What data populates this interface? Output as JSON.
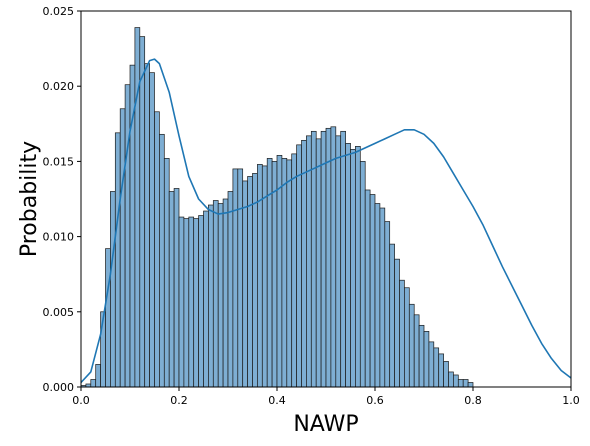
{
  "chart_data": {
    "type": "bar",
    "xlabel": "NAWP",
    "ylabel": "Probability",
    "xlim": [
      0.0,
      1.0
    ],
    "ylim": [
      0.0,
      0.025
    ],
    "xticks": [
      "0.0",
      "0.2",
      "0.4",
      "0.6",
      "0.8",
      "1.0"
    ],
    "yticks": [
      "0.000",
      "0.005",
      "0.010",
      "0.015",
      "0.020",
      "0.025"
    ],
    "grid": false,
    "bar_color": "#7eaed3",
    "bar_edge_color": "#1a1a1a",
    "kde_color": "#1f77b4",
    "bin_width": 0.01,
    "bin_start": 0.0,
    "values": [
      0.0001,
      0.0002,
      0.0005,
      0.0015,
      0.005,
      0.0092,
      0.013,
      0.0169,
      0.0185,
      0.0201,
      0.0214,
      0.0239,
      0.0233,
      0.0215,
      0.0209,
      0.0183,
      0.0168,
      0.0152,
      0.013,
      0.0132,
      0.0113,
      0.0112,
      0.0113,
      0.0112,
      0.0114,
      0.0117,
      0.0121,
      0.0124,
      0.0122,
      0.0125,
      0.013,
      0.0145,
      0.0145,
      0.0137,
      0.014,
      0.0142,
      0.0148,
      0.0147,
      0.0152,
      0.015,
      0.0154,
      0.0152,
      0.0151,
      0.0155,
      0.0161,
      0.0164,
      0.0167,
      0.017,
      0.0165,
      0.017,
      0.0172,
      0.0173,
      0.0167,
      0.017,
      0.0162,
      0.0158,
      0.016,
      0.015,
      0.0131,
      0.0128,
      0.0122,
      0.0119,
      0.011,
      0.0095,
      0.0085,
      0.0071,
      0.0066,
      0.0055,
      0.0048,
      0.0041,
      0.0037,
      0.003,
      0.0026,
      0.0022,
      0.0017,
      0.001,
      0.0008,
      0.0005,
      0.0005,
      0.0003
    ],
    "kde": {
      "x": [
        0.0,
        0.02,
        0.04,
        0.06,
        0.08,
        0.1,
        0.12,
        0.14,
        0.15,
        0.16,
        0.18,
        0.2,
        0.22,
        0.24,
        0.26,
        0.28,
        0.3,
        0.32,
        0.34,
        0.36,
        0.38,
        0.4,
        0.42,
        0.44,
        0.46,
        0.48,
        0.5,
        0.52,
        0.54,
        0.56,
        0.58,
        0.6,
        0.62,
        0.64,
        0.66,
        0.68,
        0.7,
        0.72,
        0.74,
        0.76,
        0.78,
        0.8,
        0.82,
        0.84,
        0.86,
        0.88,
        0.9,
        0.92,
        0.94,
        0.96,
        0.98,
        1.0
      ],
      "y": [
        0.0003,
        0.001,
        0.0035,
        0.0075,
        0.0125,
        0.017,
        0.0203,
        0.0217,
        0.0218,
        0.0215,
        0.0196,
        0.0167,
        0.014,
        0.0125,
        0.0118,
        0.0115,
        0.0116,
        0.0118,
        0.012,
        0.0123,
        0.0127,
        0.0131,
        0.0136,
        0.014,
        0.0143,
        0.0146,
        0.0149,
        0.0152,
        0.0154,
        0.0156,
        0.0159,
        0.0162,
        0.0165,
        0.0168,
        0.0171,
        0.0171,
        0.0168,
        0.0162,
        0.0153,
        0.0142,
        0.0131,
        0.012,
        0.0108,
        0.0094,
        0.008,
        0.0067,
        0.0054,
        0.0041,
        0.0029,
        0.0019,
        0.0011,
        0.0006
      ]
    }
  }
}
